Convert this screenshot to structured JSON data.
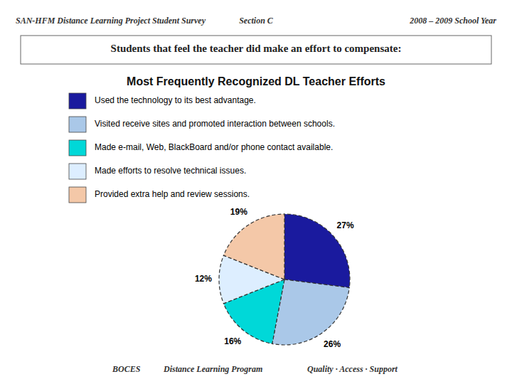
{
  "chart_data": {
    "type": "pie",
    "title": "Most Frequently Recognized DL Teacher Efforts",
    "subtitle": "Students that feel the teacher did make an effort to compensate:",
    "categories": [
      "Used the technology to its best advantage.",
      "Visited receive sites and promoted interaction between schools.",
      "Made e-mail, Web, BlackBoard and/or phone contact available.",
      "Made efforts to resolve technical issues.",
      "Provided extra help and review sessions."
    ],
    "values": [
      27,
      26,
      16,
      12,
      19
    ],
    "value_labels": [
      "27%",
      "26%",
      "16%",
      "12%",
      "19%"
    ],
    "colors": [
      "#1a1a9e",
      "#aac8e8",
      "#00d8d8",
      "#ddeeff",
      "#f4c8a8"
    ],
    "data_labels": true,
    "legend": "left",
    "annotations": [
      "SAN-HFM   Distance Learning Project   Student Survey",
      "Section C",
      "2008 – 2009 School Year",
      "BOCES",
      "Distance Learning Program",
      "Quality · Access · Support"
    ]
  }
}
